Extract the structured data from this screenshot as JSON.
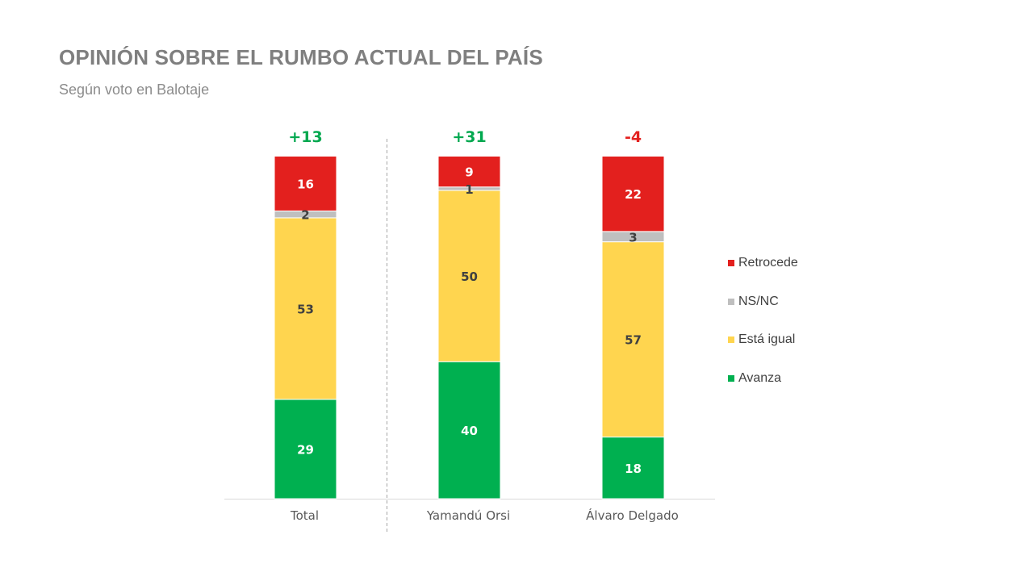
{
  "title": "OPINIÓN SOBRE EL RUMBO ACTUAL DEL PAÍS",
  "subtitle": "Según voto en Balotaje",
  "colors": {
    "avanza": "#00b050",
    "igual": "#ffd54f",
    "nsnc": "#bfbfbf",
    "retrocede": "#e3201e",
    "positive_net": "#00a84f",
    "negative_net": "#e3201e"
  },
  "chart_data": {
    "type": "bar",
    "stacked": true,
    "categories": [
      "Total",
      "Yamandú Orsi",
      "Álvaro Delgado"
    ],
    "series": [
      {
        "name": "Avanza",
        "values": [
          29,
          40,
          18
        ]
      },
      {
        "name": "Está igual",
        "values": [
          53,
          50,
          57
        ]
      },
      {
        "name": "NS/NC",
        "values": [
          2,
          1,
          3
        ]
      },
      {
        "name": "Retrocede",
        "values": [
          16,
          9,
          22
        ]
      }
    ],
    "net_labels": [
      "+13",
      "+31",
      "-4"
    ],
    "ylim": [
      0,
      100
    ],
    "legend_order": [
      "Retrocede",
      "NS/NC",
      "Está igual",
      "Avanza"
    ],
    "legend_position": "right",
    "grid": false
  }
}
